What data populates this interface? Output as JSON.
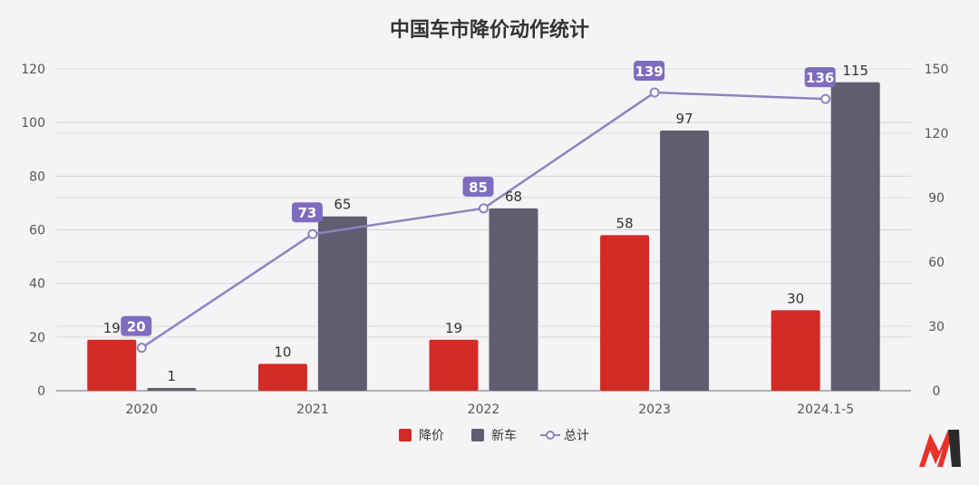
{
  "chart_data": {
    "type": "bar",
    "title": "中国车市降价动作统计",
    "categories": [
      "2020",
      "2021",
      "2022",
      "2023",
      "2024.1-5"
    ],
    "series": [
      {
        "name": "降价",
        "kind": "bar",
        "axis": "left",
        "color": "#d42a26",
        "values": [
          19,
          10,
          19,
          58,
          30
        ]
      },
      {
        "name": "新车",
        "kind": "bar",
        "axis": "left",
        "color": "#5f5e70",
        "values": [
          1,
          65,
          68,
          97,
          115
        ]
      },
      {
        "name": "总计",
        "kind": "line",
        "axis": "right",
        "color": "#8e82c0",
        "values": [
          20,
          73,
          85,
          139,
          136
        ]
      }
    ],
    "y_left": {
      "min": 0,
      "max": 120,
      "ticks": [
        0,
        20,
        40,
        60,
        80,
        100,
        120
      ]
    },
    "y_right": {
      "min": 0,
      "max": 150,
      "ticks": [
        0,
        30,
        60,
        90,
        120,
        150
      ]
    },
    "grid": true,
    "legend_position": "bottom-center"
  },
  "logo": {
    "label": "logo",
    "colors": [
      "#e8312a",
      "#2b2b2b"
    ]
  }
}
